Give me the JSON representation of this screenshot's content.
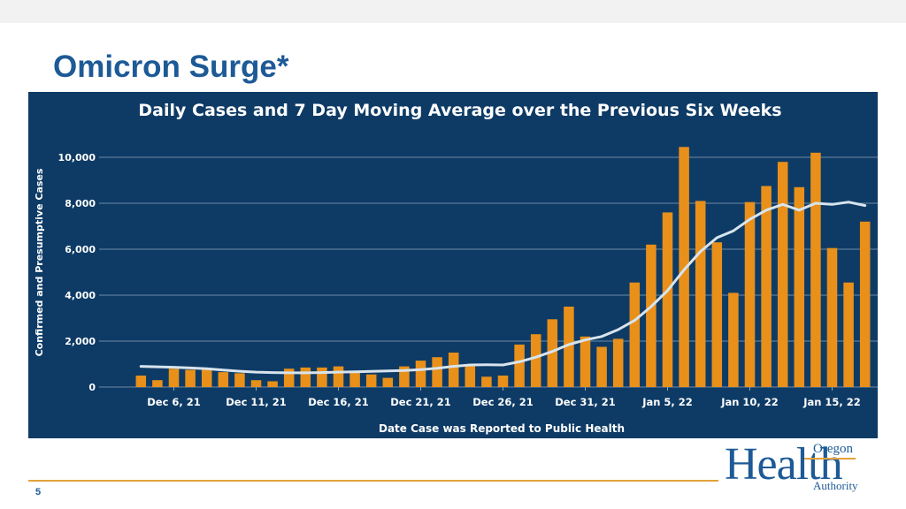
{
  "slide": {
    "title": "Omicron Surge*",
    "page_number": "5"
  },
  "logo": {
    "top": "Oregon",
    "main": "Health",
    "bottom": "Authority"
  },
  "colors": {
    "panel_bg": "#0e3b65",
    "bar": "#e8901a",
    "line": "#d8e4ee",
    "gridline": "#8fa6bd",
    "title_blue": "#1d5a96",
    "accent_orange": "#e3a23a"
  },
  "chart_data": {
    "type": "bar",
    "title": "Daily Cases and 7 Day Moving Average over the Previous Six Weeks",
    "xlabel": "Date Case was Reported to Public Health",
    "ylabel": "Confirmed and Presumptive Cases",
    "ylim": [
      0,
      11000
    ],
    "y_ticks": [
      0,
      2000,
      4000,
      6000,
      8000,
      10000
    ],
    "y_tick_labels": [
      "0",
      "2,000",
      "4,000",
      "6,000",
      "8,000",
      "10,000"
    ],
    "x_tick_labels": [
      {
        "index": 2,
        "label": "Dec 6, 21"
      },
      {
        "index": 7,
        "label": "Dec 11, 21"
      },
      {
        "index": 12,
        "label": "Dec 16, 21"
      },
      {
        "index": 17,
        "label": "Dec 21, 21"
      },
      {
        "index": 22,
        "label": "Dec 26, 21"
      },
      {
        "index": 27,
        "label": "Dec 31, 21"
      },
      {
        "index": 32,
        "label": "Jan 5, 22"
      },
      {
        "index": 37,
        "label": "Jan 10, 22"
      },
      {
        "index": 42,
        "label": "Jan 15, 22"
      }
    ],
    "grid": true,
    "series": [
      {
        "type": "bar",
        "values": [
          500,
          300,
          800,
          750,
          750,
          650,
          600,
          300,
          250,
          800,
          850,
          850,
          900,
          650,
          550,
          400,
          900,
          1150,
          1300,
          1500,
          950,
          450,
          500,
          1850,
          2300,
          2950,
          3500,
          2200,
          1750,
          2100,
          4550,
          6200,
          7600,
          10450,
          8100,
          6300,
          4100,
          8050,
          8750,
          9800,
          8700,
          10200,
          6050,
          4550,
          7200
        ]
      },
      {
        "type": "line",
        "values": [
          900,
          880,
          860,
          830,
          800,
          740,
          690,
          650,
          630,
          620,
          620,
          630,
          650,
          660,
          680,
          700,
          720,
          760,
          820,
          900,
          960,
          970,
          960,
          1100,
          1300,
          1550,
          1850,
          2050,
          2200,
          2500,
          2900,
          3500,
          4200,
          5100,
          5900,
          6500,
          6800,
          7300,
          7700,
          7950,
          7700,
          8000,
          7950,
          8050,
          7900
        ]
      }
    ]
  }
}
